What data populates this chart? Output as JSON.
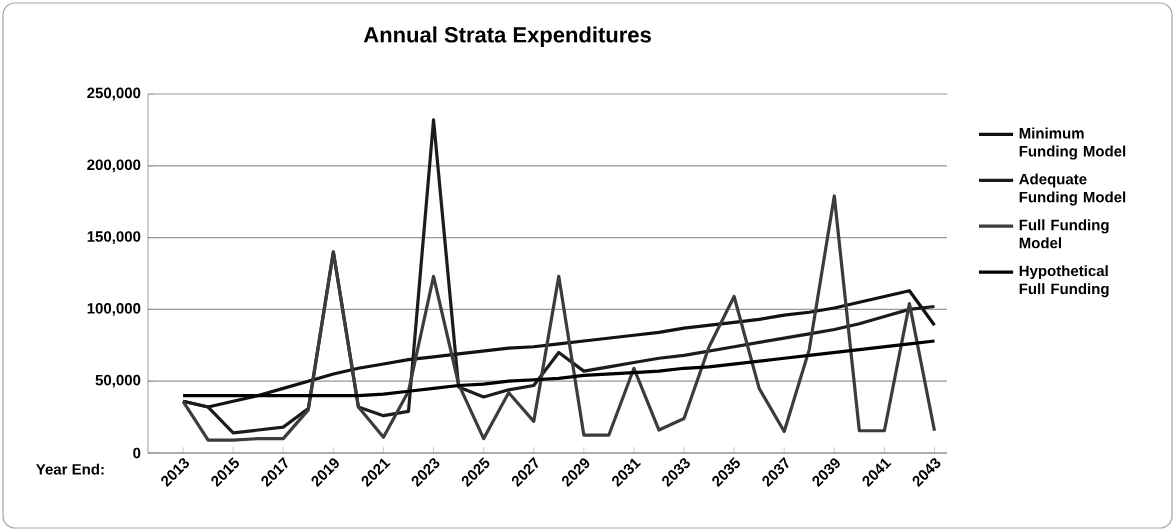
{
  "chart_data": {
    "type": "line",
    "title": "Annual Strata Expenditures",
    "xlabel": "Year End:",
    "x": [
      2013,
      2014,
      2015,
      2016,
      2017,
      2018,
      2019,
      2020,
      2021,
      2022,
      2023,
      2024,
      2025,
      2026,
      2027,
      2028,
      2029,
      2030,
      2031,
      2032,
      2033,
      2034,
      2035,
      2036,
      2037,
      2038,
      2039,
      2040,
      2041,
      2042,
      2043
    ],
    "series": [
      {
        "name": "Minimum Funding Model",
        "color": "#111111",
        "values": [
          36000,
          32000,
          36000,
          40000,
          45000,
          50000,
          55000,
          59000,
          62000,
          65000,
          67000,
          69000,
          71000,
          73000,
          74000,
          76000,
          78000,
          80000,
          82000,
          84000,
          87000,
          89000,
          91000,
          93000,
          96000,
          98000,
          101000,
          105000,
          109000,
          113000,
          89000
        ]
      },
      {
        "name": "Adequate Funding Model",
        "color": "#1c1c1c",
        "values": [
          36000,
          32000,
          14000,
          16000,
          18000,
          31000,
          140000,
          32000,
          26000,
          29000,
          232000,
          46000,
          39000,
          44000,
          47000,
          70000,
          57000,
          60000,
          63000,
          66000,
          68000,
          71000,
          74000,
          77000,
          80000,
          83000,
          86000,
          90000,
          95000,
          100000,
          102000
        ]
      },
      {
        "name": "Full Funding Model",
        "color": "#3c3c3c",
        "values": [
          36000,
          9000,
          9000,
          10000,
          10000,
          30000,
          140000,
          32000,
          11000,
          43000,
          123000,
          48000,
          10000,
          42000,
          22000,
          123000,
          12500,
          12500,
          59000,
          16000,
          24000,
          74000,
          109000,
          45000,
          15000,
          72000,
          179000,
          15500,
          15500,
          104000,
          15500
        ]
      },
      {
        "name": "Hypothetical Full Funding",
        "color": "#000000",
        "values": [
          40000,
          40000,
          40000,
          40000,
          40000,
          40000,
          40000,
          40000,
          41000,
          43000,
          45000,
          47000,
          48000,
          50000,
          51000,
          52000,
          54000,
          55000,
          56000,
          57000,
          59000,
          60000,
          62000,
          64000,
          66000,
          68000,
          70000,
          72000,
          74000,
          76000,
          78000
        ]
      }
    ],
    "xlim": [
      2011.6,
      2043.5
    ],
    "xticks": [
      2013,
      2015,
      2017,
      2019,
      2021,
      2023,
      2025,
      2027,
      2029,
      2031,
      2033,
      2035,
      2037,
      2039,
      2041,
      2043
    ],
    "ylim": [
      0,
      250000
    ],
    "yticks": [
      0,
      {
        "value": 50000,
        "label": "50,000"
      },
      {
        "value": 100000,
        "label": "100,000"
      },
      {
        "value": 150000,
        "label": "150,000"
      },
      {
        "value": 200000,
        "label": "200,000"
      },
      {
        "value": 250000,
        "label": "250,000"
      }
    ],
    "grid": "y",
    "legend": "right",
    "marker": "none",
    "line_style": "solid"
  }
}
